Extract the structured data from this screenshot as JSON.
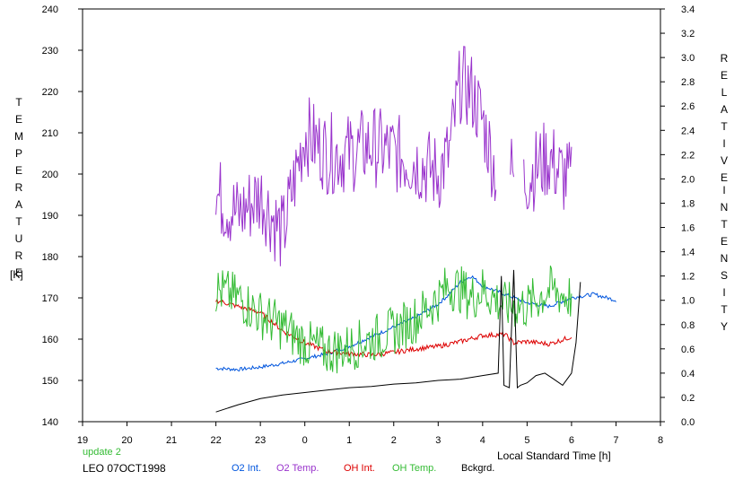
{
  "chart_data": {
    "type": "line",
    "left_axis": {
      "label_letters": [
        "T",
        "E",
        "M",
        "P",
        "E",
        "R",
        "A",
        "T",
        "U",
        "R",
        "E"
      ],
      "unit": "[K]",
      "range": [
        140,
        240
      ],
      "ticks": [
        "140",
        "150",
        "160",
        "170",
        "180",
        "190",
        "200",
        "210",
        "220",
        "230",
        "240"
      ]
    },
    "right_axis": {
      "label_word1": [
        "R",
        "E",
        "L",
        "A",
        "T",
        "I",
        "V",
        "E"
      ],
      "label_word2": [
        "I",
        "N",
        "T",
        "E",
        "N",
        "S",
        "I",
        "T",
        "Y"
      ],
      "range": [
        0.0,
        3.4
      ],
      "ticks": [
        "0.0",
        "0.2",
        "0.4",
        "0.6",
        "0.8",
        "1.0",
        "1.2",
        "1.4",
        "1.6",
        "1.8",
        "2.0",
        "2.2",
        "2.4",
        "2.6",
        "2.8",
        "3.0",
        "3.2",
        "3.4"
      ]
    },
    "x_axis": {
      "label": "Local Standard Time [h]",
      "ticks": [
        "19",
        "20",
        "21",
        "22",
        "23",
        "0",
        "1",
        "2",
        "3",
        "4",
        "5",
        "6",
        "7",
        "8"
      ],
      "hours_range": [
        19,
        32
      ]
    },
    "grid": false,
    "annotation": "update 2",
    "station": "LEO 07OCT1998",
    "series": [
      {
        "name": "O2 Int.",
        "axis": "right",
        "color": "#0055dd",
        "x": [
          22.0,
          22.5,
          23.0,
          23.5,
          24.0,
          24.5,
          25.0,
          25.5,
          26.0,
          26.5,
          27.0,
          27.25,
          27.5,
          27.75,
          28.0,
          28.5,
          29.0,
          29.5,
          30.0,
          30.5,
          31.0
        ],
        "y": [
          0.44,
          0.43,
          0.45,
          0.48,
          0.52,
          0.56,
          0.62,
          0.7,
          0.78,
          0.86,
          0.97,
          1.05,
          1.15,
          1.2,
          1.12,
          1.05,
          0.98,
          0.95,
          1.02,
          1.05,
          1.0
        ]
      },
      {
        "name": "O2 Temp.",
        "axis": "left",
        "color": "#9933cc",
        "gaps": [
          [
            28.3,
            28.6
          ],
          [
            28.7,
            28.9
          ]
        ],
        "x": [
          22.0,
          22.5,
          23.0,
          23.5,
          24.0,
          24.5,
          25.0,
          25.5,
          26.0,
          26.5,
          27.0,
          27.25,
          27.5,
          27.75,
          28.0,
          28.3,
          28.6,
          28.7,
          28.9,
          29.25,
          29.5,
          29.75,
          30.0
        ],
        "y": [
          195,
          190,
          195,
          185,
          210,
          205,
          205,
          207,
          205,
          203,
          200,
          205,
          222,
          220,
          213,
          200,
          202,
          199,
          198,
          202,
          204,
          200,
          198
        ]
      },
      {
        "name": "OH Int.",
        "axis": "right",
        "color": "#dd0000",
        "x": [
          22.0,
          22.5,
          23.0,
          23.5,
          24.0,
          24.5,
          25.0,
          25.5,
          26.0,
          26.5,
          27.0,
          27.5,
          28.0,
          28.5,
          28.7,
          29.0,
          29.5,
          30.0
        ],
        "y": [
          1.0,
          0.95,
          0.9,
          0.75,
          0.65,
          0.58,
          0.56,
          0.55,
          0.57,
          0.6,
          0.62,
          0.66,
          0.71,
          0.72,
          0.65,
          0.66,
          0.64,
          0.7
        ]
      },
      {
        "name": "OH Temp.",
        "axis": "left",
        "color": "#33bb33",
        "x": [
          22.0,
          22.5,
          23.0,
          23.5,
          24.0,
          24.5,
          25.0,
          25.5,
          26.0,
          26.5,
          27.0,
          27.25,
          27.5,
          27.75,
          28.0,
          28.5,
          29.0,
          29.5,
          30.0
        ],
        "y": [
          172,
          170,
          166,
          163,
          159,
          157,
          158,
          160,
          162,
          165,
          170,
          173,
          172,
          170,
          172,
          168,
          168,
          172,
          170
        ]
      },
      {
        "name": "Bckgrd.",
        "axis": "right",
        "color": "#000000",
        "x": [
          22.0,
          22.5,
          23.0,
          23.5,
          24.0,
          24.5,
          25.0,
          25.5,
          26.0,
          26.5,
          27.0,
          27.5,
          28.0,
          28.35,
          28.42,
          28.48,
          28.6,
          28.7,
          28.78,
          28.85,
          29.0,
          29.2,
          29.4,
          29.6,
          29.8,
          30.0,
          30.1,
          30.2
        ],
        "y": [
          0.08,
          0.14,
          0.19,
          0.22,
          0.24,
          0.26,
          0.28,
          0.29,
          0.31,
          0.32,
          0.34,
          0.35,
          0.38,
          0.4,
          1.2,
          0.3,
          0.28,
          1.25,
          0.28,
          0.3,
          0.32,
          0.38,
          0.4,
          0.35,
          0.3,
          0.4,
          0.65,
          1.15
        ]
      }
    ]
  }
}
